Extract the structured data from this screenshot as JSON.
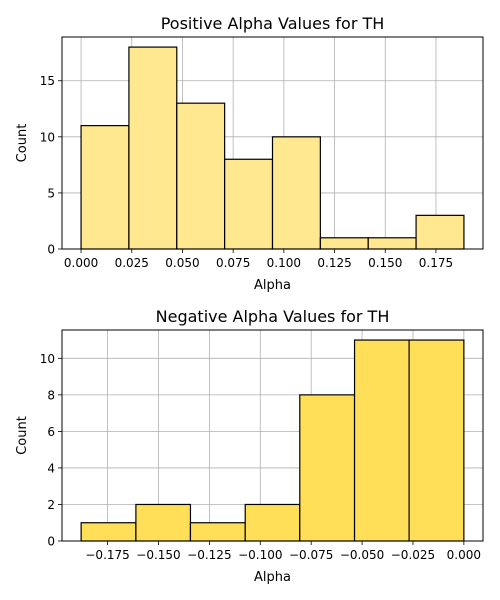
{
  "chart_data": [
    {
      "type": "bar",
      "title": "Positive Alpha Values for TH",
      "xlabel": "Alpha",
      "ylabel": "Count",
      "bin_edges": [
        0.0,
        0.0236,
        0.0472,
        0.0708,
        0.0944,
        0.118,
        0.1416,
        0.1652,
        0.1888
      ],
      "values": [
        11,
        18,
        13,
        8,
        10,
        1,
        1,
        3
      ],
      "xlim": [
        -0.0094,
        0.1982
      ],
      "ylim": [
        0,
        18.9
      ],
      "xticks": [
        0.0,
        0.025,
        0.05,
        0.075,
        0.1,
        0.125,
        0.15,
        0.175
      ],
      "xtick_labels": [
        "0.000",
        "0.025",
        "0.050",
        "0.075",
        "0.100",
        "0.125",
        "0.150",
        "0.175"
      ],
      "yticks": [
        0,
        5,
        10,
        15
      ],
      "ytick_labels": [
        "0",
        "5",
        "10",
        "15"
      ],
      "grid": true,
      "bar_color": "#ffe88f"
    },
    {
      "type": "bar",
      "title": "Negative Alpha Values for TH",
      "xlabel": "Alpha",
      "ylabel": "Count",
      "bin_edges": [
        -0.188,
        -0.1611,
        -0.1343,
        -0.1074,
        -0.0806,
        -0.0537,
        -0.0269,
        0.0
      ],
      "values": [
        1,
        2,
        1,
        2,
        8,
        11,
        11
      ],
      "xlim": [
        -0.1974,
        0.0094
      ],
      "ylim": [
        0,
        11.55
      ],
      "xticks": [
        -0.175,
        -0.15,
        -0.125,
        -0.1,
        -0.075,
        -0.05,
        -0.025,
        0.0
      ],
      "xtick_labels": [
        "−0.175",
        "−0.150",
        "−0.125",
        "−0.100",
        "−0.075",
        "−0.050",
        "−0.025",
        "0.000"
      ],
      "yticks": [
        0,
        2,
        4,
        6,
        8,
        10
      ],
      "ytick_labels": [
        "0",
        "2",
        "4",
        "6",
        "8",
        "10"
      ],
      "grid": true,
      "bar_color": "#ffdf57"
    }
  ]
}
